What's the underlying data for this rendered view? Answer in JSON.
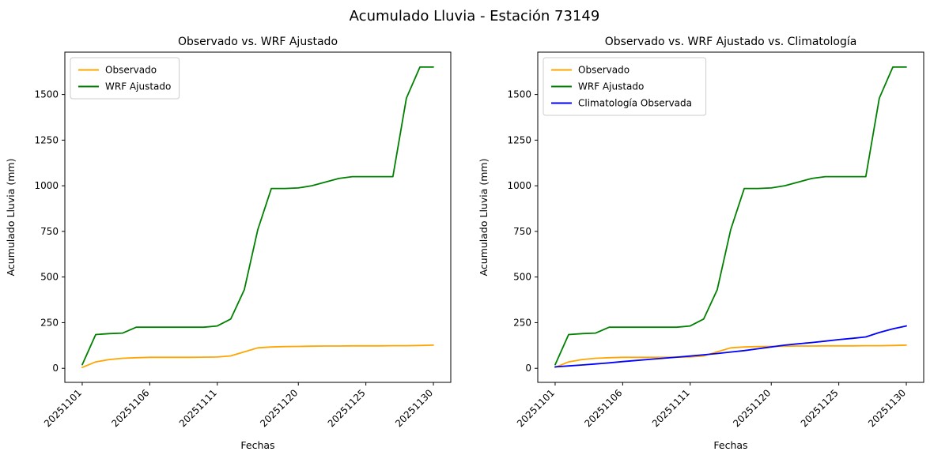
{
  "figure": {
    "title": "Acumulado Lluvia - Estación 73149",
    "background": "#ffffff"
  },
  "chart_data": [
    {
      "type": "line",
      "title": "Observado vs. WRF Ajustado",
      "xlabel": "Fechas",
      "ylabel": "Acumulado Lluvia (mm)",
      "ylim": [
        -77,
        1732
      ],
      "y_ticks": [
        0,
        250,
        500,
        750,
        1000,
        1250,
        1500
      ],
      "x_tick_labels": [
        "20251101",
        "20251106",
        "20251111",
        "20251120",
        "20251125",
        "20251130"
      ],
      "x_tick_indices": [
        0,
        5,
        10,
        16,
        21,
        26
      ],
      "n_points": 27,
      "grid": false,
      "legend_position": "upper left",
      "series": [
        {
          "name": "Observado",
          "color": "#FFA500",
          "values": [
            5,
            35,
            48,
            55,
            58,
            60,
            60,
            60,
            60,
            61,
            62,
            68,
            90,
            112,
            117,
            119,
            120,
            121,
            122,
            122,
            123,
            123,
            123,
            124,
            124,
            125,
            127
          ]
        },
        {
          "name": "WRF Ajustado",
          "color": "#008000",
          "values": [
            20,
            185,
            190,
            193,
            225,
            225,
            225,
            225,
            225,
            225,
            232,
            270,
            430,
            760,
            985,
            985,
            988,
            1000,
            1020,
            1040,
            1050,
            1050,
            1050,
            1050,
            1480,
            1650,
            1650
          ]
        }
      ]
    },
    {
      "type": "line",
      "title": "Observado vs. WRF Ajustado vs. Climatología",
      "xlabel": "Fechas",
      "ylabel": "Acumulado Lluvia (mm)",
      "ylim": [
        -77,
        1732
      ],
      "y_ticks": [
        0,
        250,
        500,
        750,
        1000,
        1250,
        1500
      ],
      "x_tick_labels": [
        "20251101",
        "20251106",
        "20251111",
        "20251120",
        "20251125",
        "20251130"
      ],
      "x_tick_indices": [
        0,
        5,
        10,
        16,
        21,
        26
      ],
      "n_points": 27,
      "grid": false,
      "legend_position": "upper left",
      "series": [
        {
          "name": "Observado",
          "color": "#FFA500",
          "values": [
            5,
            35,
            48,
            55,
            58,
            60,
            60,
            60,
            60,
            61,
            62,
            68,
            90,
            112,
            117,
            119,
            120,
            121,
            122,
            122,
            123,
            123,
            123,
            124,
            124,
            125,
            127
          ]
        },
        {
          "name": "WRF Ajustado",
          "color": "#008000",
          "values": [
            20,
            185,
            190,
            193,
            225,
            225,
            225,
            225,
            225,
            225,
            232,
            270,
            430,
            760,
            985,
            985,
            988,
            1000,
            1020,
            1040,
            1050,
            1050,
            1050,
            1050,
            1480,
            1650,
            1650
          ]
        },
        {
          "name": "Climatología Observada",
          "color": "#0000FF",
          "values": [
            8,
            13,
            18,
            24,
            30,
            37,
            43,
            49,
            55,
            61,
            67,
            74,
            81,
            89,
            97,
            107,
            117,
            127,
            134,
            141,
            149,
            157,
            164,
            172,
            196,
            216,
            232
          ]
        }
      ]
    }
  ]
}
